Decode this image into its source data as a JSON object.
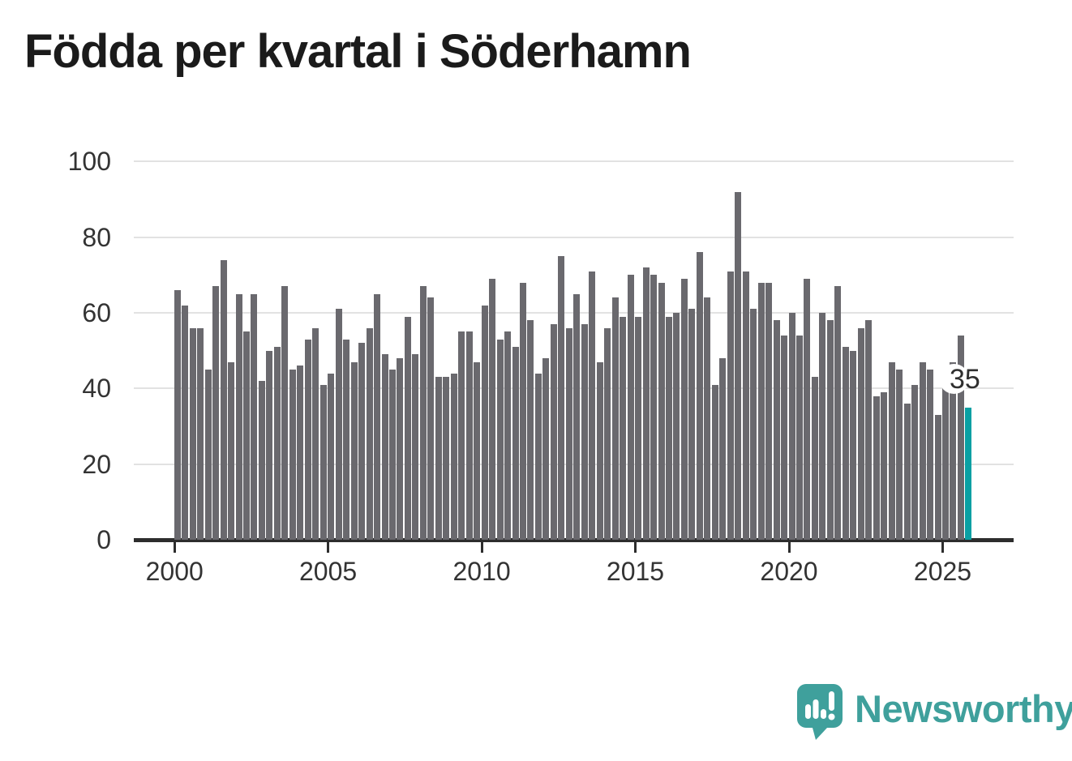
{
  "title": "Födda per kvartal i Söderhamn",
  "chart_data": {
    "type": "bar",
    "title": "Födda per kvartal i Söderhamn",
    "frequency": "quarterly",
    "start_period": "2000-Q1",
    "end_period": "2025-Q4",
    "x_tick_labels": [
      "2000",
      "2005",
      "2010",
      "2015",
      "2020",
      "2025"
    ],
    "x_tick_years": [
      2000,
      2005,
      2010,
      2015,
      2020,
      2025
    ],
    "y_ticks": [
      0,
      20,
      40,
      60,
      80,
      100
    ],
    "ylim": [
      0,
      100
    ],
    "grid": "horizontal",
    "legend": "none",
    "values": [
      66,
      62,
      56,
      56,
      45,
      67,
      74,
      47,
      65,
      55,
      65,
      42,
      50,
      51,
      67,
      45,
      46,
      53,
      56,
      41,
      44,
      61,
      53,
      47,
      52,
      56,
      65,
      49,
      45,
      48,
      59,
      49,
      67,
      64,
      43,
      43,
      44,
      55,
      55,
      47,
      62,
      69,
      53,
      55,
      51,
      68,
      58,
      44,
      48,
      57,
      75,
      56,
      65,
      57,
      71,
      47,
      56,
      64,
      59,
      70,
      59,
      72,
      70,
      68,
      59,
      60,
      69,
      61,
      76,
      64,
      41,
      48,
      71,
      92,
      71,
      61,
      68,
      68,
      58,
      54,
      60,
      54,
      69,
      43,
      60,
      58,
      67,
      51,
      50,
      56,
      58,
      38,
      39,
      47,
      45,
      36,
      41,
      47,
      45,
      33,
      41,
      47,
      54,
      35
    ],
    "highlight_last_bar": true,
    "last_bar_label": "35",
    "colors": {
      "bar": "#6a696e",
      "highlight": "#0aa0a3",
      "grid": "#e2e2e2",
      "axis": "#2d2d2d",
      "tick_text": "#333333",
      "title_text": "#1b1b1b"
    }
  },
  "branding": {
    "name": "Newsworthy",
    "color": "#3fa09c"
  }
}
